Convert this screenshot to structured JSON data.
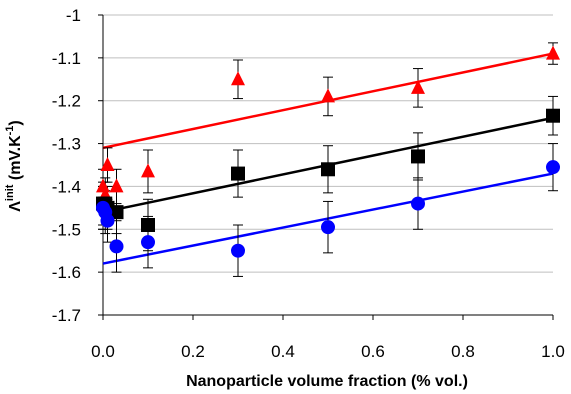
{
  "chart_data": {
    "type": "scatter",
    "xlabel": "Nanoparticle volume fraction (% vol.)",
    "ylabel": {
      "symbol": "Λ",
      "superscript": "init",
      "unit_prefix": " (mV.K",
      "unit_superscript": "-1",
      "unit_suffix": ")"
    },
    "xlim": [
      0,
      1
    ],
    "ylim": [
      -1.7,
      -1.0
    ],
    "xticks": [
      0,
      0.2,
      0.4,
      0.6,
      0.8,
      1
    ],
    "xtick_labels": [
      "0.0",
      "0.2",
      "0.4",
      "0.6",
      "0.8",
      "1.0"
    ],
    "yticks": [
      -1.7,
      -1.6,
      -1.5,
      -1.4,
      -1.3,
      -1.2,
      -1.1,
      -1.0
    ],
    "ytick_labels": [
      "-1.7",
      "-1.6",
      "-1.5",
      "-1.4",
      "-1.3",
      "-1.2",
      "-1.1",
      "-1"
    ],
    "grid": "horizontal",
    "legend": "none",
    "series": [
      {
        "marker": "triangle",
        "color": "#ff0000",
        "line_color": "#ff0000",
        "x": [
          0.0,
          0.005,
          0.01,
          0.03,
          0.1,
          0.3,
          0.5,
          0.7,
          1.0
        ],
        "y": [
          -1.4,
          -1.42,
          -1.35,
          -1.4,
          -1.365,
          -1.15,
          -1.19,
          -1.17,
          -1.09
        ],
        "err": [
          0.04,
          0.04,
          0.04,
          0.04,
          0.05,
          0.045,
          0.045,
          0.045,
          0.025
        ],
        "trend": [
          [
            0,
            -1.31
          ],
          [
            1,
            -1.09
          ]
        ]
      },
      {
        "marker": "square",
        "color": "#000000",
        "line_color": "#000000",
        "x": [
          0.0,
          0.005,
          0.01,
          0.03,
          0.1,
          0.3,
          0.5,
          0.7,
          1.0
        ],
        "y": [
          -1.44,
          -1.44,
          -1.45,
          -1.46,
          -1.49,
          -1.37,
          -1.36,
          -1.33,
          -1.235
        ],
        "err": [
          0.05,
          0.05,
          0.05,
          0.05,
          0.06,
          0.055,
          0.055,
          0.055,
          0.045
        ],
        "trend": [
          [
            0,
            -1.46
          ],
          [
            1,
            -1.24
          ]
        ]
      },
      {
        "marker": "circle",
        "color": "#0000ff",
        "line_color": "#0000ff",
        "x": [
          0.0,
          0.005,
          0.01,
          0.03,
          0.1,
          0.3,
          0.5,
          0.7,
          1.0
        ],
        "y": [
          -1.45,
          -1.46,
          -1.48,
          -1.54,
          -1.53,
          -1.55,
          -1.495,
          -1.44,
          -1.355
        ],
        "err": [
          0.05,
          0.05,
          0.05,
          0.06,
          0.06,
          0.06,
          0.06,
          0.06,
          0.055
        ],
        "trend": [
          [
            0,
            -1.58
          ],
          [
            1,
            -1.37
          ]
        ]
      }
    ]
  }
}
